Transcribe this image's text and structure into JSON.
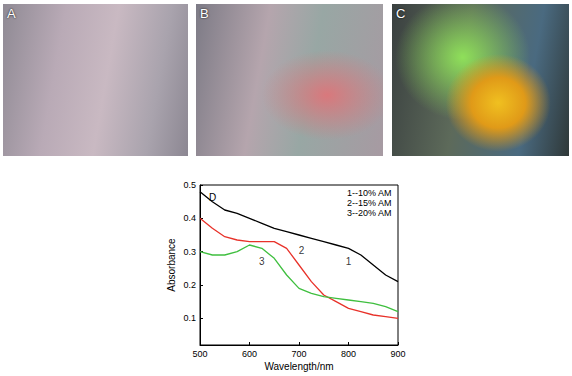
{
  "panels": [
    {
      "label": "A"
    },
    {
      "label": "B"
    },
    {
      "label": "C"
    }
  ],
  "chart_data": {
    "type": "line",
    "title": "D",
    "x_label": "Wavelength/nm",
    "y_label": "Absorbance",
    "x": [
      500,
      525,
      550,
      575,
      600,
      625,
      650,
      675,
      700,
      725,
      750,
      775,
      800,
      825,
      850,
      875,
      900
    ],
    "series": [
      {
        "name": "1--10% AM",
        "color": "#000000",
        "values": [
          0.48,
          0.45,
          0.425,
          0.415,
          0.4,
          0.385,
          0.37,
          0.36,
          0.35,
          0.34,
          0.33,
          0.32,
          0.31,
          0.29,
          0.26,
          0.23,
          0.21
        ]
      },
      {
        "name": "2--15% AM",
        "color": "#e8322a",
        "values": [
          0.4,
          0.37,
          0.345,
          0.335,
          0.33,
          0.33,
          0.33,
          0.31,
          0.26,
          0.21,
          0.17,
          0.15,
          0.13,
          0.12,
          0.11,
          0.105,
          0.1
        ]
      },
      {
        "name": "3--20% AM",
        "color": "#3fbf3f",
        "values": [
          0.3,
          0.29,
          0.29,
          0.3,
          0.32,
          0.31,
          0.28,
          0.23,
          0.19,
          0.175,
          0.165,
          0.16,
          0.155,
          0.15,
          0.145,
          0.135,
          0.12
        ]
      }
    ],
    "annotations": [
      {
        "text": "1",
        "x": 800,
        "y": 0.27
      },
      {
        "text": "2",
        "x": 705,
        "y": 0.305
      },
      {
        "text": "3",
        "x": 625,
        "y": 0.27
      }
    ],
    "xlim": [
      500,
      900
    ],
    "xticks": [
      500,
      600,
      700,
      800,
      900
    ],
    "ylim": [
      0.02,
      0.5
    ],
    "yticks": [
      0.1,
      0.2,
      0.3,
      0.4,
      0.5
    ],
    "legend": "upper right",
    "grid": false
  }
}
